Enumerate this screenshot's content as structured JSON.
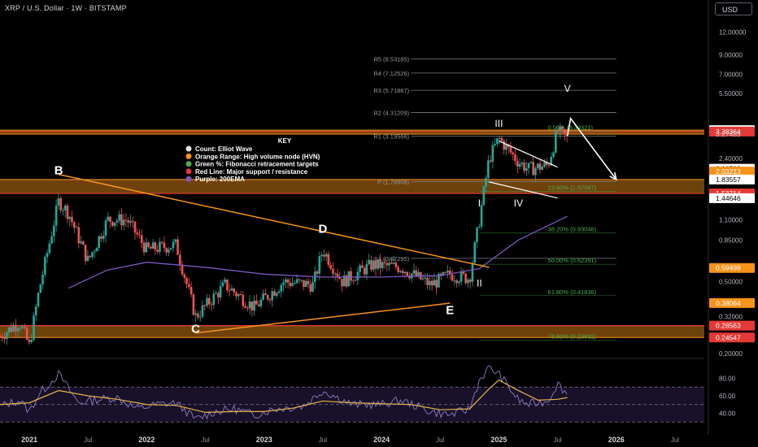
{
  "header": {
    "title": "XRP / U.S. Dollar · 1W · BITSTAMP",
    "currency": "USD"
  },
  "colors": {
    "background": "#000000",
    "up": "#26a69a",
    "down": "#ef5350",
    "orange": "#f7931a",
    "red": "#e53935",
    "purple": "#7e57c2",
    "white": "#ffffff",
    "fib": "#4caf50",
    "rsi": "#e8b24a"
  },
  "chart_data": [
    {
      "type": "candlestick",
      "title": "XRP / U.S. Dollar · 1W · BITSTAMP",
      "y_scale": "log",
      "ylim": [
        0.19,
        15
      ],
      "xlim": [
        "2020-10",
        "2026-10"
      ],
      "y_ticks": [
        "12.00000",
        "9.00000",
        "7.00000",
        "5.50000",
        "2.40000",
        "1.10000",
        "0.85000",
        "0.50000",
        "0.32000",
        "0.20000"
      ],
      "x_ticks": [
        "2021",
        "Jul",
        "2022",
        "Jul",
        "2023",
        "Jul",
        "2024",
        "Jul",
        "2025",
        "Jul",
        "2026",
        "Jul"
      ],
      "price_labels": [
        {
          "value": "3.44284",
          "style": "white"
        },
        {
          "value": "3.38364",
          "style": "red"
        },
        {
          "value": "3.27485",
          "style": "none"
        },
        {
          "value": "2.10709",
          "style": "white"
        },
        {
          "value": "2.03213",
          "style": "orange"
        },
        {
          "value": "1.83557",
          "style": "white"
        },
        {
          "value": "1.53714",
          "style": "red"
        },
        {
          "value": "1.44646",
          "style": "white"
        },
        {
          "value": "0.59498",
          "style": "orange"
        },
        {
          "value": "0.38064",
          "style": "orange"
        },
        {
          "value": "0.28563",
          "style": "red"
        },
        {
          "value": "0.24547",
          "style": "red"
        }
      ],
      "pivot_levels": [
        {
          "label": "R5 (8.53185)",
          "value": 8.53185
        },
        {
          "label": "R4 (7.12526)",
          "value": 7.12526
        },
        {
          "label": "R3 (5.71867)",
          "value": 5.71867
        },
        {
          "label": "R2 (4.31209)",
          "value": 4.31209
        },
        {
          "label": "R1 (3.19566)",
          "value": 3.19566
        },
        {
          "label": "P (1.78908)",
          "value": 1.78908
        },
        {
          "label": "S1 (0.67295)",
          "value": 0.67295
        }
      ],
      "fib_levels": [
        {
          "label": "0.00% (3.39321)",
          "value": 3.39321
        },
        {
          "label": "23.60% (1.57587)",
          "value": 1.57587
        },
        {
          "label": "38.20% (0.93046)",
          "value": 0.93046
        },
        {
          "label": "50.00% (0.62391)",
          "value": 0.62391
        },
        {
          "label": "61.80% (0.41836)",
          "value": 0.41836
        },
        {
          "label": "78.60% (0.23682)",
          "value": 0.23682
        }
      ],
      "hvn_zones": [
        [
          3.27485,
          3.44284
        ],
        [
          1.53714,
          1.83557
        ],
        [
          0.24547,
          0.28563
        ]
      ],
      "red_lines": [
        3.38364,
        1.53714,
        0.28563
      ],
      "wave_labels": [
        {
          "label": "B",
          "date": "2021-04",
          "price": 1.96
        },
        {
          "label": "C",
          "date": "2022-06",
          "price": 0.26
        },
        {
          "label": "D",
          "date": "2023-07",
          "price": 0.93
        },
        {
          "label": "E",
          "date": "2024-08",
          "price": 0.33
        },
        {
          "label": "I",
          "date": "2024-11",
          "price": 1.3
        },
        {
          "label": "II",
          "date": "2024-11",
          "price": 0.47
        },
        {
          "label": "III",
          "date": "2025-01",
          "price": 3.6
        },
        {
          "label": "IV",
          "date": "2025-03",
          "price": 1.3
        },
        {
          "label": "V",
          "date": "2025-08",
          "price": 5.6
        }
      ],
      "legend": {
        "title": "KEY",
        "items": [
          {
            "text": "Count: Elliot Wave",
            "color": "#e0e0e0"
          },
          {
            "text": "Orange Range: High volume node (HVN)",
            "color": "#f7931a"
          },
          {
            "text": "Green %: Fibonacci retracement targets",
            "color": "#4caf50"
          },
          {
            "text": "Red Line: Major support / resistance",
            "color": "#e53935"
          },
          {
            "text": "Purple: 200EMA",
            "color": "#7e57c2"
          }
        ]
      },
      "ema_200": [
        {
          "date": "2021-05",
          "value": 0.46
        },
        {
          "date": "2021-09",
          "value": 0.58
        },
        {
          "date": "2022-01",
          "value": 0.64
        },
        {
          "date": "2022-07",
          "value": 0.6
        },
        {
          "date": "2023-01",
          "value": 0.55
        },
        {
          "date": "2023-07",
          "value": 0.53
        },
        {
          "date": "2024-01",
          "value": 0.53
        },
        {
          "date": "2024-07",
          "value": 0.54
        },
        {
          "date": "2024-11",
          "value": 0.59
        },
        {
          "date": "2025-03",
          "value": 0.85
        },
        {
          "date": "2025-08",
          "value": 1.15
        }
      ],
      "price_path": [
        {
          "date": "2020-10",
          "value": 0.25
        },
        {
          "date": "2020-12",
          "value": 0.3
        },
        {
          "date": "2021-01",
          "value": 0.22
        },
        {
          "date": "2021-02",
          "value": 0.45
        },
        {
          "date": "2021-04",
          "value": 1.4
        },
        {
          "date": "2021-05",
          "value": 1.2
        },
        {
          "date": "2021-07",
          "value": 0.65
        },
        {
          "date": "2021-09",
          "value": 1.1
        },
        {
          "date": "2021-11",
          "value": 1.1
        },
        {
          "date": "2022-01",
          "value": 0.75
        },
        {
          "date": "2022-04",
          "value": 0.8
        },
        {
          "date": "2022-06",
          "value": 0.32
        },
        {
          "date": "2022-09",
          "value": 0.48
        },
        {
          "date": "2022-12",
          "value": 0.36
        },
        {
          "date": "2023-03",
          "value": 0.5
        },
        {
          "date": "2023-06",
          "value": 0.48
        },
        {
          "date": "2023-07",
          "value": 0.75
        },
        {
          "date": "2023-09",
          "value": 0.5
        },
        {
          "date": "2023-12",
          "value": 0.62
        },
        {
          "date": "2024-03",
          "value": 0.6
        },
        {
          "date": "2024-06",
          "value": 0.48
        },
        {
          "date": "2024-08",
          "value": 0.55
        },
        {
          "date": "2024-10",
          "value": 0.52
        },
        {
          "date": "2024-11",
          "value": 1.1
        },
        {
          "date": "2024-12",
          "value": 2.4
        },
        {
          "date": "2025-01",
          "value": 3.1
        },
        {
          "date": "2025-03",
          "value": 2.3
        },
        {
          "date": "2025-04",
          "value": 2.1
        },
        {
          "date": "2025-06",
          "value": 2.2
        },
        {
          "date": "2025-07",
          "value": 3.4
        },
        {
          "date": "2025-08",
          "value": 3.1
        }
      ],
      "projection": [
        {
          "date": "2025-08",
          "value": 3.2
        },
        {
          "date": "2025-08",
          "value": 4.0
        },
        {
          "date": "2026-01",
          "value": 1.83557
        }
      ]
    },
    {
      "type": "line",
      "title": "RSI",
      "ylim": [
        20,
        100
      ],
      "y_ticks": [
        "80.00",
        "60.00",
        "40.00"
      ],
      "bands": [
        30,
        50,
        70
      ],
      "series": [
        {
          "values": [
            {
              "date": "2020-10",
              "value": 48
            },
            {
              "date": "2020-12",
              "value": 55
            },
            {
              "date": "2021-01",
              "value": 42
            },
            {
              "date": "2021-02",
              "value": 62
            },
            {
              "date": "2021-04",
              "value": 85
            },
            {
              "date": "2021-06",
              "value": 52
            },
            {
              "date": "2021-08",
              "value": 56
            },
            {
              "date": "2021-10",
              "value": 58
            },
            {
              "date": "2021-12",
              "value": 45
            },
            {
              "date": "2022-02",
              "value": 50
            },
            {
              "date": "2022-04",
              "value": 52
            },
            {
              "date": "2022-06",
              "value": 33
            },
            {
              "date": "2022-08",
              "value": 42
            },
            {
              "date": "2022-10",
              "value": 45
            },
            {
              "date": "2022-12",
              "value": 38
            },
            {
              "date": "2023-02",
              "value": 45
            },
            {
              "date": "2023-05",
              "value": 48
            },
            {
              "date": "2023-07",
              "value": 66
            },
            {
              "date": "2023-10",
              "value": 50
            },
            {
              "date": "2024-01",
              "value": 50
            },
            {
              "date": "2024-03",
              "value": 55
            },
            {
              "date": "2024-06",
              "value": 42
            },
            {
              "date": "2024-08",
              "value": 38
            },
            {
              "date": "2024-10",
              "value": 45
            },
            {
              "date": "2024-11",
              "value": 78
            },
            {
              "date": "2024-12",
              "value": 92
            },
            {
              "date": "2025-01",
              "value": 85
            },
            {
              "date": "2025-03",
              "value": 55
            },
            {
              "date": "2025-04",
              "value": 50
            },
            {
              "date": "2025-06",
              "value": 54
            },
            {
              "date": "2025-07",
              "value": 74
            },
            {
              "date": "2025-08",
              "value": 62
            }
          ]
        },
        {
          "values": [
            {
              "date": "2020-10",
              "value": 50
            },
            {
              "date": "2021-01",
              "value": 52
            },
            {
              "date": "2021-04",
              "value": 66
            },
            {
              "date": "2021-07",
              "value": 60
            },
            {
              "date": "2021-10",
              "value": 56
            },
            {
              "date": "2022-01",
              "value": 50
            },
            {
              "date": "2022-04",
              "value": 49
            },
            {
              "date": "2022-07",
              "value": 41
            },
            {
              "date": "2022-10",
              "value": 42
            },
            {
              "date": "2023-01",
              "value": 42
            },
            {
              "date": "2023-04",
              "value": 46
            },
            {
              "date": "2023-07",
              "value": 54
            },
            {
              "date": "2023-10",
              "value": 52
            },
            {
              "date": "2024-01",
              "value": 51
            },
            {
              "date": "2024-04",
              "value": 50
            },
            {
              "date": "2024-07",
              "value": 44
            },
            {
              "date": "2024-10",
              "value": 45
            },
            {
              "date": "2024-12",
              "value": 68
            },
            {
              "date": "2025-01",
              "value": 78
            },
            {
              "date": "2025-03",
              "value": 66
            },
            {
              "date": "2025-05",
              "value": 55
            },
            {
              "date": "2025-07",
              "value": 56
            },
            {
              "date": "2025-08",
              "value": 58
            }
          ]
        }
      ]
    }
  ]
}
